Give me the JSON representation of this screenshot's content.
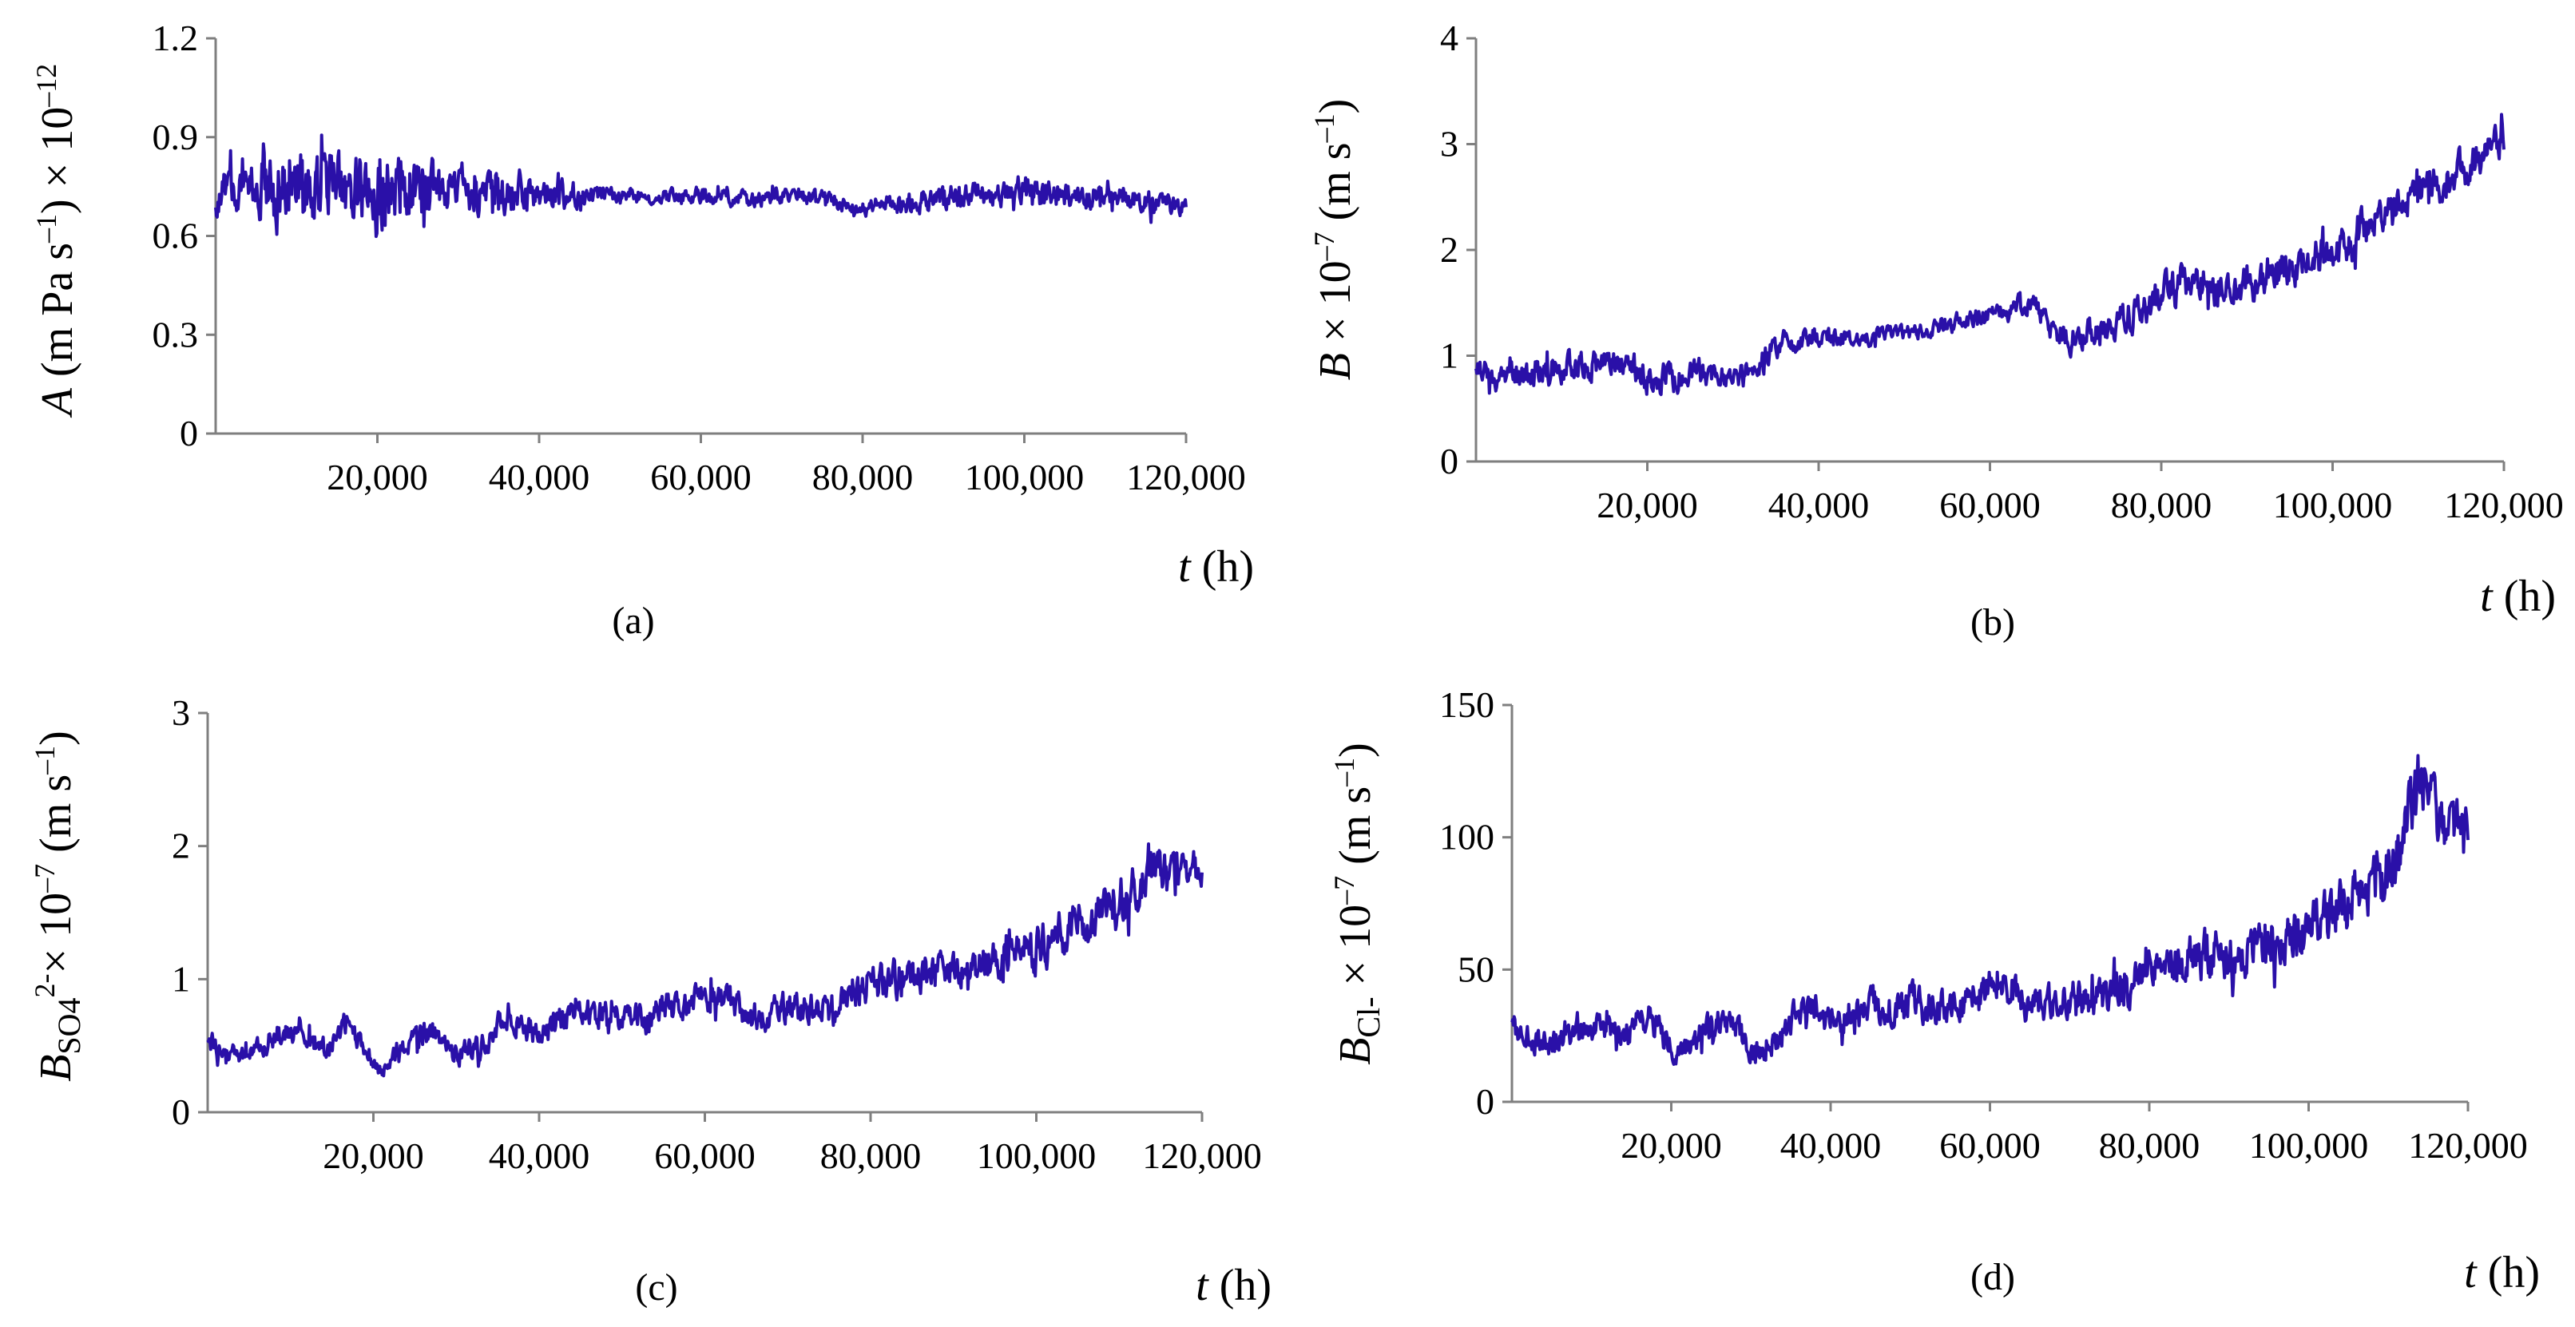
{
  "chart_data": [
    {
      "id": "a",
      "type": "line",
      "caption": "(a)",
      "title": "",
      "ylabel": {
        "var": "A",
        "text": " (m Pa s",
        "sup1": "–1",
        "text2": ") × 10",
        "sup2": "–12"
      },
      "xlabel": {
        "var": "t",
        "text": " (h)"
      },
      "ylim": [
        0,
        1.2
      ],
      "yticks": [
        "0",
        "0.3",
        "0.6",
        "0.9",
        "1.2"
      ],
      "ytick_values": [
        0,
        0.3,
        0.6,
        0.9,
        1.2
      ],
      "xlim": [
        0,
        120000
      ],
      "xticks": [
        "20,000",
        "40,000",
        "60,000",
        "80,000",
        "100,000",
        "120,000"
      ],
      "xtick_values": [
        20000,
        40000,
        60000,
        80000,
        100000,
        120000
      ],
      "series": [
        {
          "name": "A",
          "x": [
            0,
            1000,
            2500,
            5000,
            6500,
            8000,
            10000,
            12500,
            15000,
            17500,
            20000,
            22500,
            25000,
            27500,
            30000,
            32500,
            35000,
            37500,
            40000,
            42500,
            45000,
            50000,
            55000,
            60000,
            65000,
            70000,
            75000,
            78000,
            80000,
            82000,
            85000,
            90000,
            95000,
            100000,
            105000,
            110000,
            115000,
            120000
          ],
          "y": [
            0.7,
            0.75,
            0.73,
            0.77,
            0.76,
            0.74,
            0.76,
            0.73,
            0.75,
            0.73,
            0.72,
            0.74,
            0.72,
            0.73,
            0.75,
            0.72,
            0.72,
            0.74,
            0.73,
            0.72,
            0.73,
            0.72,
            0.72,
            0.72,
            0.71,
            0.72,
            0.72,
            0.69,
            0.68,
            0.7,
            0.7,
            0.72,
            0.72,
            0.73,
            0.72,
            0.72,
            0.71,
            0.69
          ],
          "noise_amplitude": [
            0.04,
            0.05,
            0.05,
            0.06,
            0.11,
            0.1,
            0.09,
            0.09,
            0.09,
            0.09,
            0.1,
            0.1,
            0.1,
            0.07,
            0.05,
            0.05,
            0.06,
            0.05,
            0.04,
            0.04,
            0.03,
            0.02,
            0.02,
            0.02,
            0.02,
            0.02,
            0.02,
            0.02,
            0.02,
            0.02,
            0.03,
            0.03,
            0.03,
            0.04,
            0.03,
            0.03,
            0.03,
            0.02
          ]
        }
      ]
    },
    {
      "id": "b",
      "type": "line",
      "caption": "(b)",
      "title": "",
      "ylabel": {
        "var": "B",
        "text": " × 10",
        "sup1": "–7",
        "text2": " (m s",
        "sup2": "–1",
        "text3": ")"
      },
      "xlabel": {
        "var": "t",
        "text": " (h)"
      },
      "ylim": [
        0,
        4
      ],
      "yticks": [
        "0",
        "1",
        "2",
        "3",
        "4"
      ],
      "ytick_values": [
        0,
        1,
        2,
        3,
        4
      ],
      "xlim": [
        0,
        120000
      ],
      "xticks": [
        "20,000",
        "40,000",
        "60,000",
        "80,000",
        "100,000",
        "120,000"
      ],
      "xtick_values": [
        20000,
        40000,
        60000,
        80000,
        100000,
        120000
      ],
      "series": [
        {
          "name": "B",
          "x": [
            0,
            2000,
            5000,
            10000,
            15000,
            18000,
            20000,
            25000,
            30000,
            33000,
            35000,
            40000,
            45000,
            50000,
            55000,
            60000,
            65000,
            67000,
            70000,
            75000,
            80000,
            85000,
            88000,
            90000,
            95000,
            100000,
            105000,
            110000,
            115000,
            118000,
            120000
          ],
          "y": [
            0.9,
            0.8,
            0.82,
            0.88,
            0.92,
            0.95,
            0.78,
            0.82,
            0.8,
            0.85,
            1.1,
            1.18,
            1.18,
            1.22,
            1.28,
            1.4,
            1.5,
            1.3,
            1.15,
            1.3,
            1.55,
            1.75,
            1.55,
            1.7,
            1.85,
            2.0,
            2.25,
            2.55,
            2.75,
            2.95,
            3.05
          ],
          "noise_amplitude": [
            0.1,
            0.1,
            0.12,
            0.12,
            0.12,
            0.12,
            0.12,
            0.12,
            0.1,
            0.1,
            0.1,
            0.08,
            0.07,
            0.06,
            0.07,
            0.08,
            0.09,
            0.12,
            0.12,
            0.14,
            0.15,
            0.16,
            0.15,
            0.16,
            0.16,
            0.17,
            0.17,
            0.16,
            0.16,
            0.14,
            0.12
          ]
        }
      ]
    },
    {
      "id": "c",
      "type": "line",
      "caption": "(c)",
      "title": "",
      "ylabel": {
        "var": "B",
        "sub": "SO4",
        "sup1": "2-",
        "text": "× 10",
        "sup2": "–7",
        "text2": " (m s",
        "sup3": "–1",
        "text3": ")"
      },
      "xlabel": {
        "var": "t",
        "text": " (h)"
      },
      "ylim": [
        0,
        3
      ],
      "yticks": [
        "0",
        "1",
        "2",
        "3"
      ],
      "ytick_values": [
        0,
        1,
        2,
        3
      ],
      "xlim": [
        0,
        120000
      ],
      "xticks": [
        "20,000",
        "40,000",
        "60,000",
        "80,000",
        "100,000",
        "120,000"
      ],
      "xtick_values": [
        20000,
        40000,
        60000,
        80000,
        100000,
        120000
      ],
      "series": [
        {
          "name": "B_SO4",
          "x": [
            0,
            2000,
            5000,
            8000,
            11000,
            14000,
            17000,
            21000,
            25000,
            27000,
            30000,
            33000,
            36000,
            40000,
            45000,
            50000,
            55000,
            60000,
            63000,
            66000,
            70000,
            75000,
            80000,
            85000,
            90000,
            95000,
            100000,
            105000,
            110000,
            115000,
            120000
          ],
          "y": [
            0.55,
            0.45,
            0.42,
            0.58,
            0.62,
            0.48,
            0.65,
            0.32,
            0.55,
            0.62,
            0.42,
            0.5,
            0.72,
            0.6,
            0.75,
            0.68,
            0.75,
            0.9,
            0.85,
            0.7,
            0.78,
            0.75,
            0.95,
            1.05,
            1.05,
            1.15,
            1.25,
            1.4,
            1.55,
            1.85,
            1.8
          ],
          "noise_amplitude": [
            0.08,
            0.06,
            0.06,
            0.08,
            0.08,
            0.08,
            0.08,
            0.06,
            0.08,
            0.08,
            0.07,
            0.08,
            0.08,
            0.09,
            0.1,
            0.1,
            0.1,
            0.1,
            0.1,
            0.1,
            0.1,
            0.1,
            0.12,
            0.12,
            0.12,
            0.13,
            0.14,
            0.14,
            0.15,
            0.15,
            0.12
          ]
        }
      ]
    },
    {
      "id": "d",
      "type": "line",
      "caption": "(d)",
      "title": "",
      "ylabel": {
        "var": "B",
        "sub": "Cl-",
        "text": " × 10",
        "sup1": "–7",
        "text2": " (m s",
        "sup2": "–1",
        "text3": ")"
      },
      "xlabel": {
        "var": "t",
        "text": " (h)"
      },
      "ylim": [
        0,
        150
      ],
      "yticks": [
        "0",
        "50",
        "100",
        "150"
      ],
      "ytick_values": [
        0,
        50,
        100,
        150
      ],
      "xlim": [
        0,
        120000
      ],
      "xticks": [
        "20,000",
        "40,000",
        "60,000",
        "80,000",
        "100,000",
        "120,000"
      ],
      "xtick_values": [
        20000,
        40000,
        60000,
        80000,
        100000,
        120000
      ],
      "series": [
        {
          "name": "B_Cl",
          "x": [
            0,
            2000,
            5000,
            8000,
            11000,
            14000,
            17000,
            21000,
            25000,
            27000,
            31000,
            34000,
            37000,
            40000,
            45000,
            50000,
            55000,
            60000,
            63000,
            66000,
            70000,
            75000,
            80000,
            85000,
            90000,
            95000,
            100000,
            105000,
            110000,
            114000,
            116000,
            118000,
            120000
          ],
          "y": [
            30,
            24,
            22,
            28,
            30,
            25,
            32,
            18,
            28,
            30,
            18,
            25,
            38,
            30,
            35,
            38,
            35,
            45,
            42,
            35,
            38,
            40,
            48,
            55,
            55,
            58,
            65,
            75,
            85,
            125,
            105,
            100,
            100
          ],
          "noise_amplitude": [
            5,
            4,
            4,
            5,
            5,
            5,
            5,
            4,
            5,
            5,
            4,
            5,
            5,
            5,
            6,
            6,
            6,
            6,
            6,
            6,
            6,
            7,
            7,
            8,
            8,
            8,
            9,
            9,
            10,
            10,
            10,
            9,
            8
          ]
        }
      ]
    }
  ]
}
